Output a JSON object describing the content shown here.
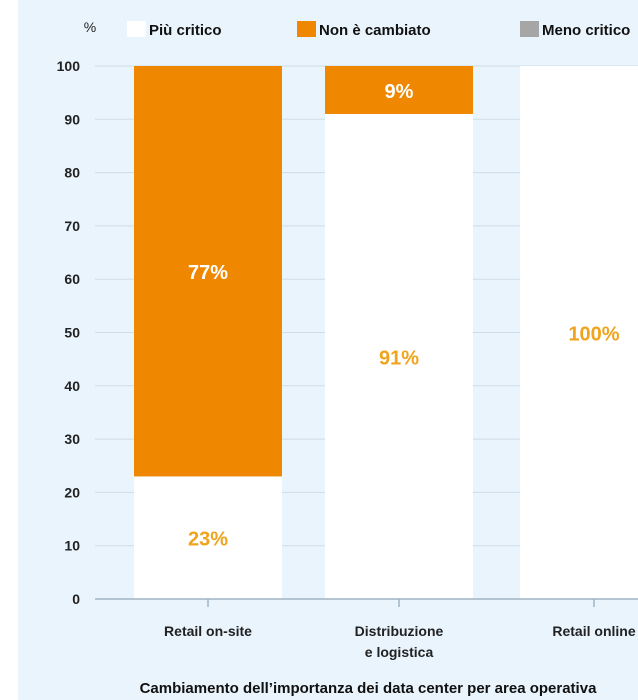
{
  "chart_data": {
    "type": "bar",
    "stacked": true,
    "y_unit": "%",
    "ylim": [
      0,
      100
    ],
    "y_ticks": [
      0,
      10,
      20,
      30,
      40,
      50,
      60,
      70,
      80,
      90,
      100
    ],
    "categories": [
      [
        "Retail on-site"
      ],
      [
        "Distribuzione",
        "e logistica"
      ],
      [
        "Retail online"
      ]
    ],
    "series": [
      {
        "name": "Più critico",
        "color": "#ffffff",
        "values": [
          23,
          91,
          100
        ],
        "labels": [
          "23%",
          "91%",
          "100%"
        ]
      },
      {
        "name": "Non è cambiato",
        "color": "#ef8700",
        "values": [
          77,
          9,
          0
        ],
        "labels": [
          "77%",
          "9%",
          ""
        ]
      },
      {
        "name": "Meno critico",
        "color": "#a6a6a6",
        "values": [
          0,
          0,
          0
        ],
        "labels": [
          "",
          "",
          ""
        ]
      }
    ],
    "label_colors": {
      "on_white": "#f0a31c",
      "on_orange": "#ffffff"
    },
    "grid": true,
    "legend_position": "top",
    "caption": "Cambiamento dell’importanza dei data center per area operativa"
  }
}
